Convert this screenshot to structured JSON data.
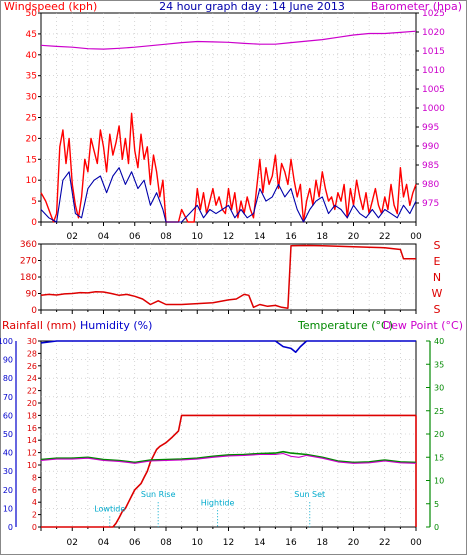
{
  "header": {
    "left_label": "Windspeed (kph)",
    "title": "24 hour graph day : 14 June 2013",
    "right_label": "Barometer (hpa)"
  },
  "colors": {
    "frame": "#000000",
    "grid": "#bdbdbd",
    "wind_gust": "#ff0000",
    "wind_avg": "#0000aa",
    "barometer": "#cc00cc",
    "direction": "#dd0000",
    "rainfall": "#dd0000",
    "humidity": "#0000cc",
    "temperature": "#008800",
    "dew_point": "#cc00cc",
    "sun_markers": "#00aacc"
  },
  "x_axis": {
    "range_hours": [
      0,
      24
    ],
    "ticks": [
      {
        "h": 2,
        "label": "02"
      },
      {
        "h": 4,
        "label": "04"
      },
      {
        "h": 6,
        "label": "06"
      },
      {
        "h": 8,
        "label": "08"
      },
      {
        "h": 10,
        "label": "10"
      },
      {
        "h": 12,
        "label": "12"
      },
      {
        "h": 14,
        "label": "14"
      },
      {
        "h": 16,
        "label": "16"
      },
      {
        "h": 18,
        "label": "18"
      },
      {
        "h": 20,
        "label": "20"
      },
      {
        "h": 22,
        "label": "22"
      },
      {
        "h": 24,
        "label": "00"
      }
    ]
  },
  "chart_data": [
    {
      "type": "line",
      "title": "24 hour graph day : 14 June 2013",
      "ylabel": "Windspeed (kph)",
      "ylim": [
        0,
        50
      ],
      "yticks": [
        0,
        5,
        10,
        15,
        20,
        25,
        30,
        35,
        40,
        45,
        50
      ],
      "y2label": "Barometer (hpa)",
      "y2lim": [
        970,
        1025
      ],
      "y2ticks": [
        975,
        980,
        985,
        990,
        995,
        1000,
        1005,
        1010,
        1015,
        1020,
        1025
      ],
      "series": [
        {
          "name": "gust",
          "x": [
            0,
            0.3,
            0.5,
            0.8,
            1.0,
            1.2,
            1.4,
            1.6,
            1.8,
            2.0,
            2.2,
            2.4,
            2.6,
            2.8,
            3.0,
            3.2,
            3.4,
            3.6,
            3.8,
            4.0,
            4.2,
            4.4,
            4.6,
            4.8,
            5.0,
            5.2,
            5.4,
            5.6,
            5.8,
            6.0,
            6.2,
            6.4,
            6.6,
            6.8,
            7.0,
            7.2,
            7.4,
            7.6,
            7.8,
            8.0,
            8.4,
            8.8,
            9.0,
            9.4,
            9.8,
            10.0,
            10.2,
            10.4,
            10.6,
            10.8,
            11.0,
            11.2,
            11.4,
            11.6,
            11.8,
            12.0,
            12.2,
            12.4,
            12.6,
            12.8,
            13.0,
            13.2,
            13.4,
            13.6,
            13.8,
            14.0,
            14.2,
            14.4,
            14.6,
            14.8,
            15.0,
            15.2,
            15.4,
            15.6,
            15.8,
            16.0,
            16.2,
            16.4,
            16.6,
            16.8,
            17.0,
            17.2,
            17.4,
            17.6,
            17.8,
            18.0,
            18.2,
            18.4,
            18.6,
            18.8,
            19.0,
            19.2,
            19.4,
            19.6,
            19.8,
            20.0,
            20.2,
            20.4,
            20.6,
            20.8,
            21.0,
            21.2,
            21.4,
            21.6,
            21.8,
            22.0,
            22.2,
            22.4,
            22.6,
            22.8,
            23.0,
            23.2,
            23.4,
            23.6,
            23.8,
            24.0
          ],
          "values": [
            7,
            5,
            3,
            0,
            2,
            18,
            22,
            14,
            20,
            9,
            4,
            1,
            6,
            15,
            12,
            20,
            17,
            14,
            22,
            18,
            12,
            21,
            16,
            19,
            23,
            15,
            20,
            14,
            26,
            17,
            13,
            21,
            15,
            18,
            9,
            16,
            12,
            6,
            10,
            0,
            0,
            0,
            3,
            0,
            0,
            8,
            3,
            7,
            2,
            5,
            8,
            4,
            6,
            3,
            2,
            8,
            3,
            7,
            1,
            5,
            2,
            6,
            3,
            1,
            8,
            15,
            7,
            13,
            9,
            11,
            16,
            8,
            14,
            12,
            9,
            15,
            10,
            6,
            9,
            0,
            5,
            8,
            4,
            10,
            6,
            12,
            8,
            5,
            6,
            3,
            7,
            5,
            9,
            1,
            8,
            4,
            10,
            6,
            3,
            7,
            2,
            5,
            8,
            4,
            2,
            6,
            3,
            9,
            4,
            2,
            13,
            6,
            9,
            4,
            7,
            9
          ]
        },
        {
          "name": "average",
          "x": [
            0,
            0.5,
            1.0,
            1.4,
            1.8,
            2.2,
            2.6,
            3.0,
            3.4,
            3.8,
            4.2,
            4.6,
            5.0,
            5.4,
            5.8,
            6.2,
            6.6,
            7.0,
            7.4,
            7.8,
            8.0,
            9.0,
            10.0,
            10.4,
            10.8,
            11.2,
            11.6,
            12.0,
            12.4,
            12.8,
            13.2,
            13.6,
            14.0,
            14.4,
            14.8,
            15.2,
            15.6,
            16.0,
            16.4,
            16.8,
            17.2,
            17.6,
            18.0,
            18.4,
            18.8,
            19.2,
            19.6,
            20.0,
            20.4,
            20.8,
            21.2,
            21.6,
            22.0,
            22.4,
            22.8,
            23.2,
            23.6,
            24.0
          ],
          "values": [
            3,
            1,
            0,
            10,
            12,
            2,
            1,
            8,
            10,
            11,
            7,
            11,
            13,
            9,
            12,
            8,
            10,
            4,
            7,
            3,
            0,
            0,
            4,
            1,
            3,
            2,
            3,
            4,
            1,
            3,
            1,
            2,
            8,
            5,
            6,
            9,
            6,
            8,
            3,
            0,
            3,
            5,
            6,
            2,
            4,
            3,
            1,
            4,
            2,
            1,
            3,
            1,
            3,
            2,
            1,
            4,
            2,
            5
          ]
        },
        {
          "name": "barometer",
          "axis": "y2",
          "x": [
            0,
            1,
            2,
            3,
            4,
            5,
            6,
            7,
            8,
            9,
            10,
            11,
            12,
            13,
            14,
            15,
            16,
            17,
            18,
            19,
            20,
            21,
            22,
            23,
            24
          ],
          "values": [
            1016.5,
            1016.2,
            1016,
            1015.6,
            1015.5,
            1015.7,
            1016,
            1016.4,
            1016.8,
            1017.2,
            1017.5,
            1017.4,
            1017.3,
            1017.0,
            1016.8,
            1016.8,
            1017.2,
            1017.6,
            1018.0,
            1018.6,
            1019.2,
            1019.6,
            1019.6,
            1019.9,
            1020.2
          ]
        }
      ]
    },
    {
      "type": "line",
      "ylim": [
        0,
        360
      ],
      "yticks": [
        0,
        90,
        180,
        270,
        360
      ],
      "right_letters": [
        "S",
        "E",
        "N",
        "W",
        "S"
      ],
      "series": [
        {
          "name": "direction",
          "x": [
            0,
            0.5,
            1.0,
            1.5,
            2.0,
            2.5,
            3.0,
            3.5,
            4.0,
            4.5,
            5.0,
            5.5,
            6.0,
            6.5,
            7.0,
            7.5,
            8.0,
            9.0,
            10.0,
            11.0,
            12.0,
            12.5,
            13.0,
            13.3,
            13.6,
            14.0,
            14.5,
            15.0,
            15.4,
            15.8,
            16.0,
            17.0,
            18.0,
            19.0,
            20.0,
            21.0,
            22.0,
            23.0,
            23.2,
            24.0
          ],
          "values": [
            80,
            85,
            82,
            88,
            90,
            95,
            93,
            100,
            98,
            90,
            80,
            85,
            75,
            60,
            30,
            50,
            30,
            30,
            35,
            40,
            55,
            60,
            85,
            80,
            15,
            30,
            20,
            25,
            15,
            10,
            350,
            352,
            350,
            348,
            345,
            342,
            340,
            330,
            280,
            280
          ]
        }
      ]
    },
    {
      "type": "line",
      "ylabel": "Rainfall (mm)",
      "ylim": [
        0,
        30
      ],
      "yticks": [
        0,
        2,
        4,
        6,
        8,
        10,
        12,
        14,
        16,
        18,
        20,
        22,
        24,
        26,
        28,
        30
      ],
      "humidity_label": "Humidity (%)",
      "humidity_lim": [
        0,
        100
      ],
      "humidity_ticks": [
        0,
        10,
        20,
        30,
        40,
        50,
        60,
        70,
        80,
        90,
        100
      ],
      "y2label": "Temperature (°C)",
      "y3label": "Dew Point (°C)",
      "y2lim": [
        0,
        40
      ],
      "y2ticks": [
        0,
        5,
        10,
        15,
        20,
        25,
        30,
        35,
        40
      ],
      "series": [
        {
          "name": "rainfall",
          "x": [
            0,
            4.6,
            4.8,
            5.0,
            5.2,
            5.4,
            5.6,
            5.8,
            6.0,
            6.2,
            6.4,
            6.6,
            6.8,
            7.0,
            7.2,
            7.4,
            7.6,
            8.0,
            8.4,
            8.8,
            9.0,
            10.0,
            12.0,
            14.0,
            16.0,
            18.0,
            20.0,
            22.0,
            24.0
          ],
          "values": [
            0,
            0,
            0.6,
            1.5,
            2.5,
            3.0,
            4.0,
            5.0,
            6.0,
            6.5,
            7.0,
            8.0,
            9.0,
            10.5,
            11.5,
            12.5,
            13.0,
            13.6,
            14.5,
            15.5,
            18.0,
            18.0,
            18.0,
            18.0,
            18.0,
            18.0,
            18.0,
            18.0,
            18.0
          ]
        },
        {
          "name": "humidity",
          "axis": "humidity",
          "x": [
            0,
            1,
            2,
            3,
            4,
            5,
            6,
            7,
            8,
            9,
            10,
            11,
            12,
            13,
            14,
            15,
            15.5,
            16.0,
            16.3,
            16.6,
            17.0,
            18,
            19,
            20,
            21,
            22,
            23,
            24
          ],
          "values": [
            99,
            100,
            100,
            100,
            100,
            100,
            100,
            100,
            100,
            100,
            100,
            100,
            100,
            100,
            100,
            100,
            97,
            96,
            94,
            97,
            100,
            100,
            100,
            100,
            100,
            100,
            100,
            100
          ]
        },
        {
          "name": "temperature",
          "axis": "y2",
          "x": [
            0,
            1,
            2,
            3,
            4,
            5,
            6,
            7,
            8,
            9,
            10,
            11,
            12,
            13,
            14,
            15,
            15.5,
            16,
            17,
            18,
            19,
            20,
            21,
            22,
            23,
            24
          ],
          "values": [
            14.5,
            14.8,
            14.8,
            15.0,
            14.5,
            14.3,
            13.9,
            14.4,
            14.5,
            14.6,
            14.8,
            15.2,
            15.5,
            15.6,
            15.8,
            15.9,
            16.2,
            15.9,
            15.6,
            15.0,
            14.2,
            13.9,
            14.0,
            14.4,
            14.0,
            13.9
          ]
        },
        {
          "name": "dew_point",
          "axis": "y2",
          "x": [
            0,
            1,
            2,
            3,
            4,
            5,
            6,
            7,
            8,
            9,
            10,
            11,
            12,
            13,
            14,
            15,
            15.5,
            16,
            16.5,
            17,
            18,
            19,
            20,
            21,
            22,
            23,
            24
          ],
          "values": [
            14.3,
            14.6,
            14.6,
            14.8,
            14.3,
            14.1,
            13.7,
            14.2,
            14.3,
            14.4,
            14.6,
            15.0,
            15.3,
            15.4,
            15.6,
            15.6,
            15.8,
            15.2,
            15.0,
            15.4,
            14.8,
            14.0,
            13.7,
            13.8,
            14.2,
            13.8,
            13.7
          ]
        }
      ],
      "annotations": [
        {
          "label": "Lowtide",
          "h": 4.4,
          "y": 2.5
        },
        {
          "label": "Sun Rise",
          "h": 7.5,
          "y": 4.8
        },
        {
          "label": "Hightide",
          "h": 11.3,
          "y": 3.5
        },
        {
          "label": "Sun Set",
          "h": 17.2,
          "y": 4.8
        }
      ]
    }
  ]
}
